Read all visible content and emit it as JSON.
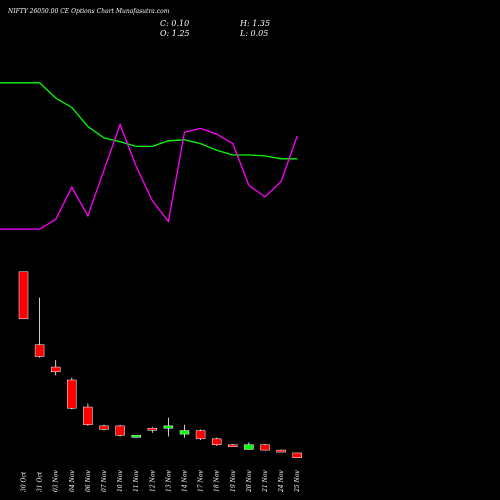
{
  "header": {
    "title": "NIFTY 26050.00 CE Options Chart Munafasutra.com",
    "close": "C: 0.10",
    "open": "O: 1.25",
    "high": "H: 1.35",
    "low": "L: 0.05"
  },
  "chart_data": {
    "type": "candlestick",
    "title": "NIFTY 26050.00 CE Options Chart Munafasutra.com",
    "categories": [
      "30 Oct",
      "31 Oct",
      "03 Nov",
      "04 Nov",
      "06 Nov",
      "07 Nov",
      "10 Nov",
      "11 Nov",
      "12 Nov",
      "13 Nov",
      "14 Nov",
      "17 Nov",
      "18 Nov",
      "19 Nov",
      "20 Nov",
      "21 Nov",
      "24 Nov",
      "25 Nov"
    ],
    "candles": [
      {
        "open": 75.0,
        "high": 75.0,
        "low": 55.0,
        "close": 55.0,
        "color": "red"
      },
      {
        "open": 44.0,
        "high": 64.0,
        "low": 38.5,
        "close": 39.0,
        "color": "red"
      },
      {
        "open": 34.5,
        "high": 37.5,
        "low": 31.0,
        "close": 32.5,
        "color": "red"
      },
      {
        "open": 29.0,
        "high": 30.0,
        "low": 16.5,
        "close": 17.0,
        "color": "red"
      },
      {
        "open": 17.5,
        "high": 19.0,
        "low": 9.5,
        "close": 10.0,
        "color": "red"
      },
      {
        "open": 9.5,
        "high": 10.0,
        "low": 7.5,
        "close": 8.0,
        "color": "red"
      },
      {
        "open": 9.5,
        "high": 10.0,
        "low": 5.0,
        "close": 5.5,
        "color": "red"
      },
      {
        "open": 4.8,
        "high": 5.5,
        "low": 4.5,
        "close": 5.5,
        "color": "green"
      },
      {
        "open": 8.5,
        "high": 9.0,
        "low": 6.5,
        "close": 8.0,
        "color": "red"
      },
      {
        "open": 8.5,
        "high": 13.0,
        "low": 5.0,
        "close": 9.5,
        "color": "green"
      },
      {
        "open": 6.0,
        "high": 10.0,
        "low": 4.5,
        "close": 7.5,
        "color": "green"
      },
      {
        "open": 7.5,
        "high": 8.0,
        "low": 3.5,
        "close": 4.0,
        "color": "red"
      },
      {
        "open": 4.0,
        "high": 4.5,
        "low": 1.0,
        "close": 1.5,
        "color": "red"
      },
      {
        "open": 1.5,
        "high": 1.8,
        "low": 0.5,
        "close": 0.8,
        "color": "red"
      },
      {
        "open": -0.5,
        "high": 2.5,
        "low": -0.5,
        "close": 1.5,
        "color": "green"
      },
      {
        "open": 1.5,
        "high": 1.8,
        "low": -1.0,
        "close": -0.8,
        "color": "red"
      },
      {
        "open": -0.8,
        "high": -0.5,
        "low": -1.7,
        "close": -1.5,
        "color": "red"
      },
      {
        "open": -2.0,
        "high": -2.0,
        "low": -4.0,
        "close": -4.0,
        "color": "red"
      }
    ],
    "price_range": [
      -5,
      80
    ],
    "indicator_lines": [
      {
        "color": "#00ff00",
        "values": [
          88.0,
          88.0,
          80.0,
          75.0,
          65.0,
          59.0,
          57.0,
          54.5,
          54.5,
          57.5,
          58.0,
          56.0,
          52.5,
          50.0,
          50.0,
          49.5,
          48.0,
          48.0
        ]
      },
      {
        "color": "#ff00ff",
        "values": [
          11.0,
          11.0,
          16.0,
          33.0,
          18.0,
          42.0,
          66.0,
          44.0,
          26.0,
          15.0,
          62.0,
          64.0,
          61.0,
          56.0,
          34.0,
          28.0,
          36.0,
          60.0
        ]
      }
    ],
    "indicator_range": [
      0,
      100
    ]
  }
}
